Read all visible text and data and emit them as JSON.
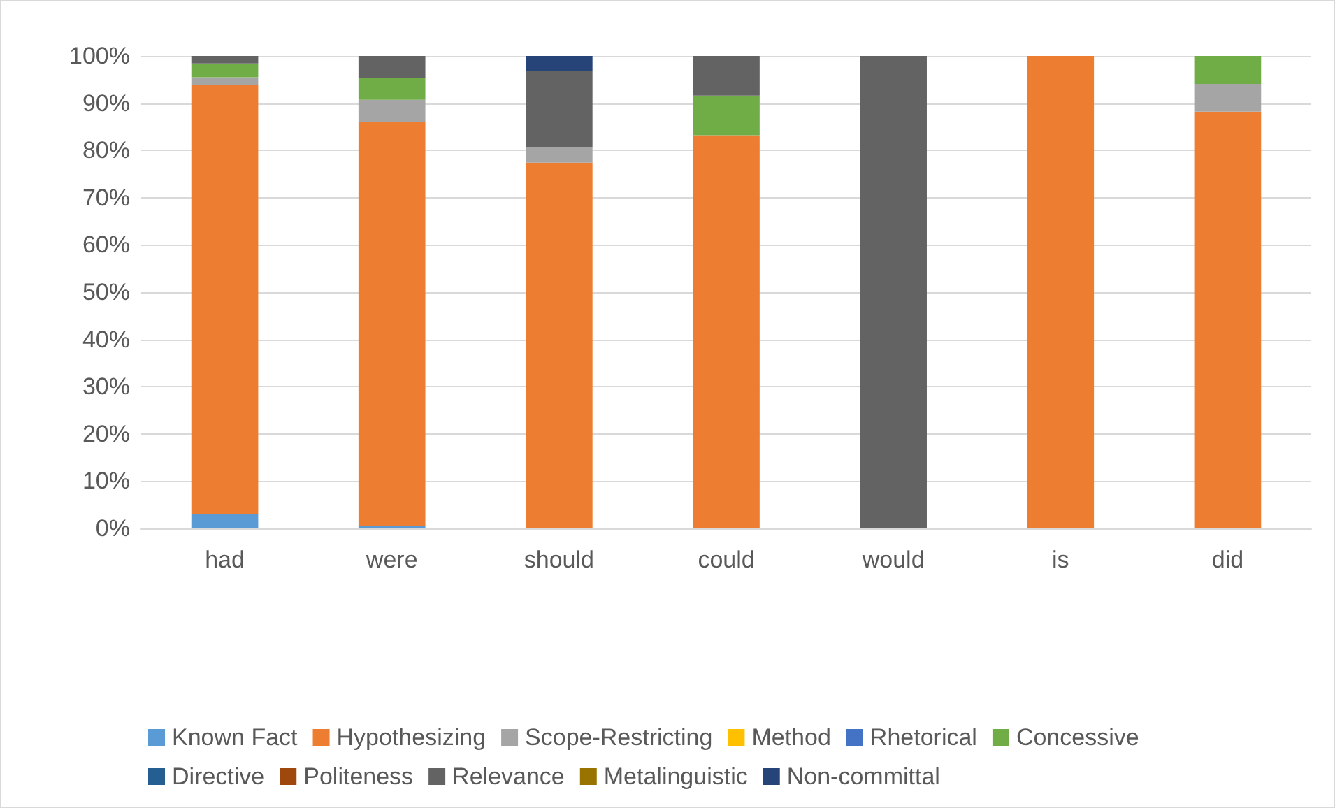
{
  "chart_data": {
    "type": "bar",
    "stacked": true,
    "categories": [
      "had",
      "were",
      "should",
      "could",
      "would",
      "is",
      "did"
    ],
    "series": [
      {
        "name": "Known Fact",
        "color": "#5b9bd5",
        "values": [
          3,
          0.5,
          0,
          0,
          0,
          0,
          0
        ]
      },
      {
        "name": "Hypothesizing",
        "color": "#ed7d31",
        "values": [
          90.9,
          85.5,
          77.4,
          83.2,
          0,
          100,
          88.2
        ]
      },
      {
        "name": "Scope-Restricting",
        "color": "#a5a5a5",
        "values": [
          1.6,
          4.7,
          3.2,
          0,
          0,
          0,
          5.9
        ]
      },
      {
        "name": "Method",
        "color": "#ffc000",
        "values": [
          0,
          0,
          0,
          0,
          0,
          0,
          0
        ]
      },
      {
        "name": "Rhetorical",
        "color": "#4472c4",
        "values": [
          0,
          0,
          0,
          0,
          0,
          0,
          0
        ]
      },
      {
        "name": "Concessive",
        "color": "#70ad47",
        "values": [
          2.9,
          4.7,
          0,
          8.4,
          0,
          0,
          5.9
        ]
      },
      {
        "name": "Directive",
        "color": "#255e91",
        "values": [
          0,
          0,
          0,
          0,
          0,
          0,
          0
        ]
      },
      {
        "name": "Politeness",
        "color": "#9e480e",
        "values": [
          0,
          0,
          0,
          0,
          0,
          0,
          0
        ]
      },
      {
        "name": "Relevance",
        "color": "#636363",
        "values": [
          1.6,
          4.6,
          16.2,
          8.4,
          100,
          0,
          0
        ]
      },
      {
        "name": "Metalinguistic",
        "color": "#997300",
        "values": [
          0,
          0,
          0,
          0,
          0,
          0,
          0
        ]
      },
      {
        "name": "Non-committal",
        "color": "#264478",
        "values": [
          0,
          0,
          3.2,
          0,
          0,
          0,
          0
        ]
      }
    ],
    "ylim": [
      0,
      100
    ],
    "yticks": [
      {
        "value": 0,
        "label": "0%"
      },
      {
        "value": 10,
        "label": "10%"
      },
      {
        "value": 20,
        "label": "20%"
      },
      {
        "value": 30,
        "label": "30%"
      },
      {
        "value": 40,
        "label": "40%"
      },
      {
        "value": 50,
        "label": "50%"
      },
      {
        "value": 60,
        "label": "60%"
      },
      {
        "value": 70,
        "label": "70%"
      },
      {
        "value": 80,
        "label": "80%"
      },
      {
        "value": 90,
        "label": "90%"
      },
      {
        "value": 100,
        "label": "100%"
      }
    ],
    "grid": "y",
    "legend": "bottom"
  }
}
